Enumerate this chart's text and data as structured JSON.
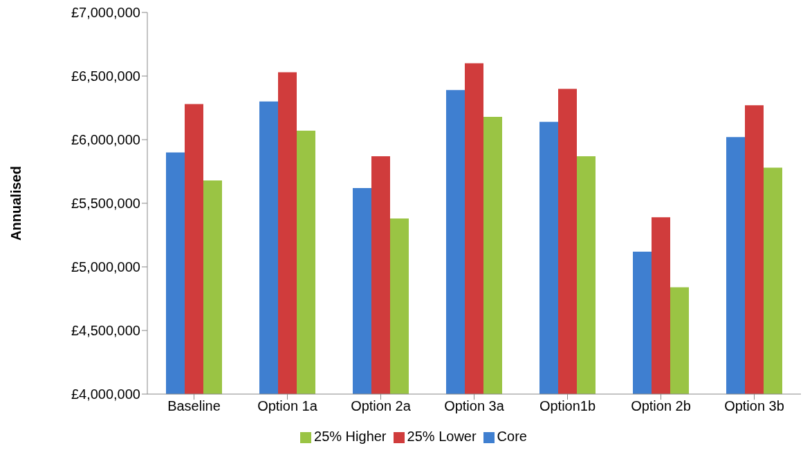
{
  "chart_data": {
    "type": "bar",
    "ylabel": "Annualised",
    "categories": [
      "Baseline",
      "Option 1a",
      "Option 2a",
      "Option 3a",
      "Option1b",
      "Option 2b",
      "Option 3b"
    ],
    "series": [
      {
        "name": "Core",
        "color": "#3f7fd0",
        "values": [
          5900000,
          6300000,
          5620000,
          6390000,
          6140000,
          5120000,
          6020000
        ]
      },
      {
        "name": "25% Lower",
        "color": "#d03c3c",
        "values": [
          6280000,
          6530000,
          5870000,
          6600000,
          6400000,
          5390000,
          6270000
        ]
      },
      {
        "name": "25% Higher",
        "color": "#9ac444",
        "values": [
          5680000,
          6070000,
          5380000,
          6180000,
          5870000,
          4840000,
          5780000
        ]
      }
    ],
    "ylim": [
      4000000,
      7000000
    ],
    "yticks": [
      {
        "value": 4000000,
        "label": "£4,000,000"
      },
      {
        "value": 4500000,
        "label": "£4,500,000"
      },
      {
        "value": 5000000,
        "label": "£5,000,000"
      },
      {
        "value": 5500000,
        "label": "£5,500,000"
      },
      {
        "value": 6000000,
        "label": "£6,000,000"
      },
      {
        "value": 6500000,
        "label": "£6,500,000"
      },
      {
        "value": 7000000,
        "label": "£7,000,000"
      }
    ],
    "grid": false,
    "legend": "bottom"
  }
}
